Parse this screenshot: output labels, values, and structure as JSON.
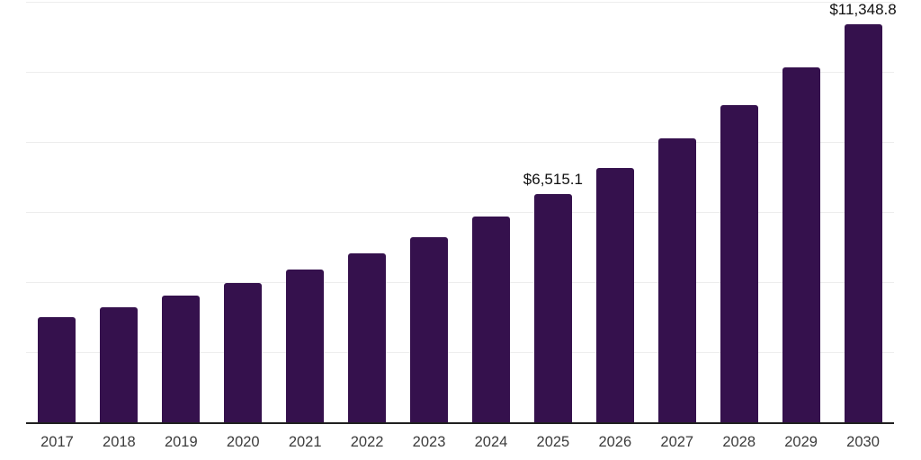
{
  "chart_data": {
    "type": "bar",
    "title": "",
    "xlabel": "",
    "ylabel": "",
    "categories": [
      "2017",
      "2018",
      "2019",
      "2020",
      "2021",
      "2022",
      "2023",
      "2024",
      "2025",
      "2026",
      "2027",
      "2028",
      "2029",
      "2030"
    ],
    "values": [
      2990,
      3280,
      3610,
      3970,
      4360,
      4820,
      5280,
      5870,
      6515.1,
      7260,
      8100,
      9050,
      10130,
      11348.8
    ],
    "bar_labels": [
      "",
      "",
      "",
      "",
      "",
      "",
      "",
      "",
      "$6,515.1",
      "",
      "",
      "",
      "",
      "$11,348.8"
    ],
    "ylim": [
      0,
      12000
    ],
    "gridline_step": 2000,
    "grid": "horizontal",
    "y_axis_tick_labels": "hidden",
    "legend_position": "none",
    "bar_color": "#35114D",
    "value_label_color": "#101010",
    "tick_label_color": "#3C3C3C",
    "axis_line_color": "#202020",
    "gridline_color": "#EDEDED",
    "background_color": "#FFFFFF"
  }
}
